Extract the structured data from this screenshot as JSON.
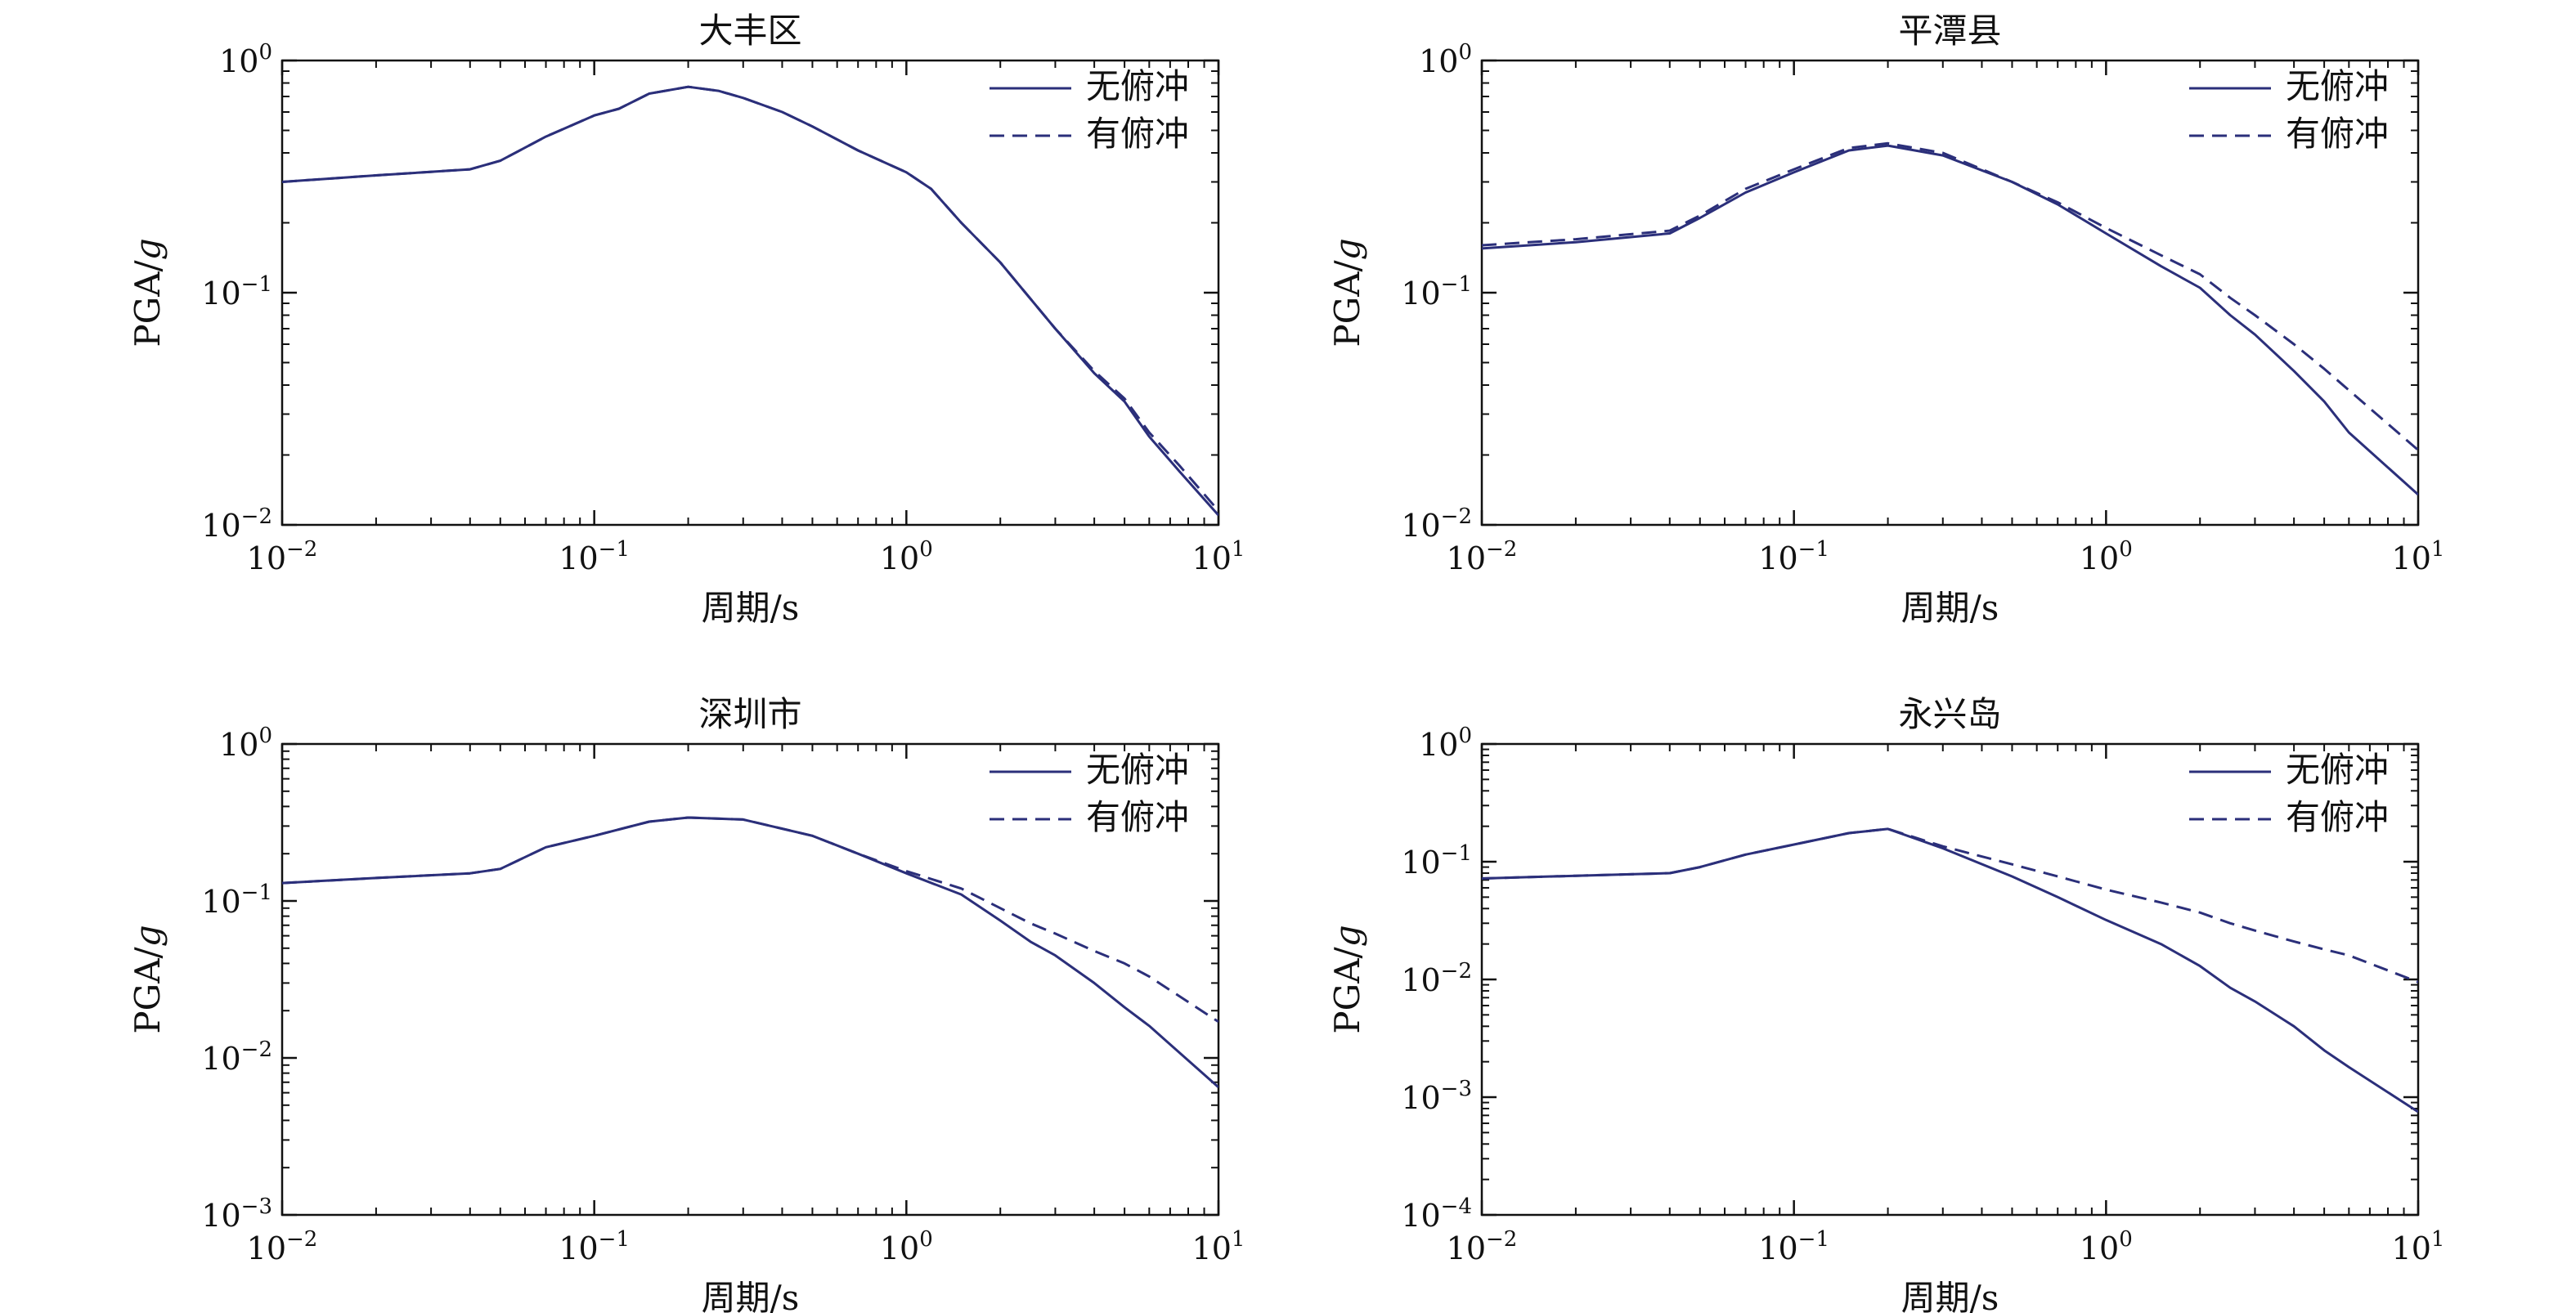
{
  "figure": {
    "curve_color": "#2b2f7a",
    "axis_color": "#111111"
  },
  "chart_data": [
    {
      "type": "line",
      "title": "大丰区",
      "xlabel": "周期/s",
      "ylabel": "PGA/g",
      "xscale": "log",
      "yscale": "log",
      "xlim": [
        0.01,
        10
      ],
      "ylim": [
        0.01,
        1
      ],
      "xticks": [
        {
          "value": 0.01,
          "base": "10",
          "exp": "−2"
        },
        {
          "value": 0.1,
          "base": "10",
          "exp": "−1"
        },
        {
          "value": 1,
          "base": "10",
          "exp": "0"
        },
        {
          "value": 10,
          "base": "10",
          "exp": "1"
        }
      ],
      "yticks": [
        {
          "value": 0.01,
          "base": "10",
          "exp": "−2"
        },
        {
          "value": 0.1,
          "base": "10",
          "exp": "−1"
        },
        {
          "value": 1,
          "base": "10",
          "exp": "0"
        }
      ],
      "legend_position": "top-right",
      "grid": false,
      "series": [
        {
          "name": "无俯冲",
          "style": "solid",
          "x": [
            0.01,
            0.02,
            0.04,
            0.05,
            0.07,
            0.1,
            0.12,
            0.15,
            0.2,
            0.25,
            0.3,
            0.4,
            0.5,
            0.7,
            1.0,
            1.2,
            1.5,
            2.0,
            3.0,
            4.0,
            5.0,
            6.0,
            7.5,
            10.0
          ],
          "y": [
            0.3,
            0.32,
            0.34,
            0.37,
            0.47,
            0.58,
            0.62,
            0.72,
            0.77,
            0.74,
            0.69,
            0.6,
            0.52,
            0.41,
            0.33,
            0.28,
            0.2,
            0.135,
            0.07,
            0.045,
            0.034,
            0.024,
            0.017,
            0.011
          ]
        },
        {
          "name": "有俯冲",
          "style": "dashed",
          "x": [
            0.01,
            0.02,
            0.04,
            0.05,
            0.07,
            0.1,
            0.12,
            0.15,
            0.2,
            0.25,
            0.3,
            0.4,
            0.5,
            0.7,
            1.0,
            1.2,
            1.5,
            2.0,
            3.0,
            4.0,
            5.0,
            6.0,
            7.5,
            10.0
          ],
          "y": [
            0.3,
            0.32,
            0.34,
            0.37,
            0.47,
            0.58,
            0.62,
            0.72,
            0.77,
            0.74,
            0.69,
            0.6,
            0.52,
            0.41,
            0.33,
            0.28,
            0.2,
            0.135,
            0.07,
            0.046,
            0.035,
            0.025,
            0.018,
            0.0115
          ]
        }
      ]
    },
    {
      "type": "line",
      "title": "平潭县",
      "xlabel": "周期/s",
      "ylabel": "PGA/g",
      "xscale": "log",
      "yscale": "log",
      "xlim": [
        0.01,
        10
      ],
      "ylim": [
        0.01,
        1
      ],
      "xticks": [
        {
          "value": 0.01,
          "base": "10",
          "exp": "−2"
        },
        {
          "value": 0.1,
          "base": "10",
          "exp": "−1"
        },
        {
          "value": 1,
          "base": "10",
          "exp": "0"
        },
        {
          "value": 10,
          "base": "10",
          "exp": "1"
        }
      ],
      "yticks": [
        {
          "value": 0.01,
          "base": "10",
          "exp": "−2"
        },
        {
          "value": 0.1,
          "base": "10",
          "exp": "−1"
        },
        {
          "value": 1,
          "base": "10",
          "exp": "0"
        }
      ],
      "legend_position": "top-right",
      "grid": false,
      "series": [
        {
          "name": "无俯冲",
          "style": "solid",
          "x": [
            0.01,
            0.02,
            0.04,
            0.05,
            0.07,
            0.1,
            0.15,
            0.2,
            0.3,
            0.5,
            0.7,
            1.0,
            1.5,
            2.0,
            2.5,
            3.0,
            4.0,
            5.0,
            6.0,
            10.0
          ],
          "y": [
            0.155,
            0.165,
            0.18,
            0.21,
            0.27,
            0.33,
            0.41,
            0.43,
            0.39,
            0.3,
            0.24,
            0.18,
            0.13,
            0.105,
            0.08,
            0.066,
            0.046,
            0.034,
            0.025,
            0.0135
          ]
        },
        {
          "name": "有俯冲",
          "style": "dashed",
          "x": [
            0.01,
            0.02,
            0.04,
            0.05,
            0.07,
            0.1,
            0.15,
            0.2,
            0.3,
            0.5,
            0.7,
            1.0,
            1.5,
            2.0,
            2.5,
            3.0,
            4.0,
            5.0,
            6.0,
            10.0
          ],
          "y": [
            0.16,
            0.17,
            0.185,
            0.215,
            0.28,
            0.34,
            0.42,
            0.44,
            0.4,
            0.3,
            0.245,
            0.19,
            0.145,
            0.12,
            0.095,
            0.08,
            0.06,
            0.047,
            0.038,
            0.021
          ]
        }
      ]
    },
    {
      "type": "line",
      "title": "深圳市",
      "xlabel": "周期/s",
      "ylabel": "PGA/g",
      "xscale": "log",
      "yscale": "log",
      "xlim": [
        0.01,
        10
      ],
      "ylim": [
        0.001,
        1
      ],
      "xticks": [
        {
          "value": 0.01,
          "base": "10",
          "exp": "−2"
        },
        {
          "value": 0.1,
          "base": "10",
          "exp": "−1"
        },
        {
          "value": 1,
          "base": "10",
          "exp": "0"
        },
        {
          "value": 10,
          "base": "10",
          "exp": "1"
        }
      ],
      "yticks": [
        {
          "value": 0.001,
          "base": "10",
          "exp": "−3"
        },
        {
          "value": 0.01,
          "base": "10",
          "exp": "−2"
        },
        {
          "value": 0.1,
          "base": "10",
          "exp": "−1"
        },
        {
          "value": 1,
          "base": "10",
          "exp": "0"
        }
      ],
      "legend_position": "top-right",
      "grid": false,
      "series": [
        {
          "name": "无俯冲",
          "style": "solid",
          "x": [
            0.01,
            0.02,
            0.04,
            0.05,
            0.07,
            0.1,
            0.15,
            0.2,
            0.3,
            0.5,
            0.7,
            1.0,
            1.5,
            2.0,
            2.5,
            3.0,
            4.0,
            5.0,
            6.0,
            10.0
          ],
          "y": [
            0.13,
            0.14,
            0.15,
            0.16,
            0.22,
            0.26,
            0.32,
            0.34,
            0.33,
            0.26,
            0.2,
            0.15,
            0.11,
            0.075,
            0.055,
            0.045,
            0.03,
            0.021,
            0.016,
            0.0065
          ]
        },
        {
          "name": "有俯冲",
          "style": "dashed",
          "x": [
            0.01,
            0.02,
            0.04,
            0.05,
            0.07,
            0.1,
            0.15,
            0.2,
            0.3,
            0.5,
            0.7,
            1.0,
            1.5,
            2.0,
            2.5,
            3.0,
            4.0,
            5.0,
            6.0,
            10.0
          ],
          "y": [
            0.13,
            0.14,
            0.15,
            0.16,
            0.22,
            0.26,
            0.32,
            0.34,
            0.33,
            0.26,
            0.2,
            0.155,
            0.12,
            0.09,
            0.072,
            0.062,
            0.048,
            0.04,
            0.033,
            0.017
          ]
        }
      ]
    },
    {
      "type": "line",
      "title": "永兴岛",
      "xlabel": "周期/s",
      "ylabel": "PGA/g",
      "xscale": "log",
      "yscale": "log",
      "xlim": [
        0.01,
        10
      ],
      "ylim": [
        0.0001,
        1
      ],
      "xticks": [
        {
          "value": 0.01,
          "base": "10",
          "exp": "−2"
        },
        {
          "value": 0.1,
          "base": "10",
          "exp": "−1"
        },
        {
          "value": 1,
          "base": "10",
          "exp": "0"
        },
        {
          "value": 10,
          "base": "10",
          "exp": "1"
        }
      ],
      "yticks": [
        {
          "value": 0.0001,
          "base": "10",
          "exp": "−4"
        },
        {
          "value": 0.001,
          "base": "10",
          "exp": "−3"
        },
        {
          "value": 0.01,
          "base": "10",
          "exp": "−2"
        },
        {
          "value": 0.1,
          "base": "10",
          "exp": "−1"
        },
        {
          "value": 1,
          "base": "10",
          "exp": "0"
        }
      ],
      "legend_position": "top-right",
      "grid": false,
      "series": [
        {
          "name": "无俯冲",
          "style": "solid",
          "x": [
            0.01,
            0.02,
            0.04,
            0.05,
            0.07,
            0.1,
            0.15,
            0.2,
            0.3,
            0.5,
            0.7,
            1.0,
            1.5,
            2.0,
            2.5,
            3.0,
            4.0,
            5.0,
            6.0,
            10.0
          ],
          "y": [
            0.072,
            0.076,
            0.08,
            0.09,
            0.115,
            0.14,
            0.175,
            0.19,
            0.13,
            0.075,
            0.05,
            0.032,
            0.02,
            0.013,
            0.0085,
            0.0065,
            0.004,
            0.0025,
            0.0018,
            0.00075
          ]
        },
        {
          "name": "有俯冲",
          "style": "dashed",
          "x": [
            0.01,
            0.02,
            0.04,
            0.05,
            0.07,
            0.1,
            0.15,
            0.2,
            0.3,
            0.5,
            0.7,
            1.0,
            1.5,
            2.0,
            2.5,
            3.0,
            4.0,
            5.0,
            6.0,
            10.0
          ],
          "y": [
            0.072,
            0.076,
            0.08,
            0.09,
            0.115,
            0.14,
            0.175,
            0.19,
            0.135,
            0.095,
            0.075,
            0.058,
            0.045,
            0.037,
            0.03,
            0.026,
            0.021,
            0.018,
            0.016,
            0.0095
          ]
        }
      ]
    }
  ]
}
